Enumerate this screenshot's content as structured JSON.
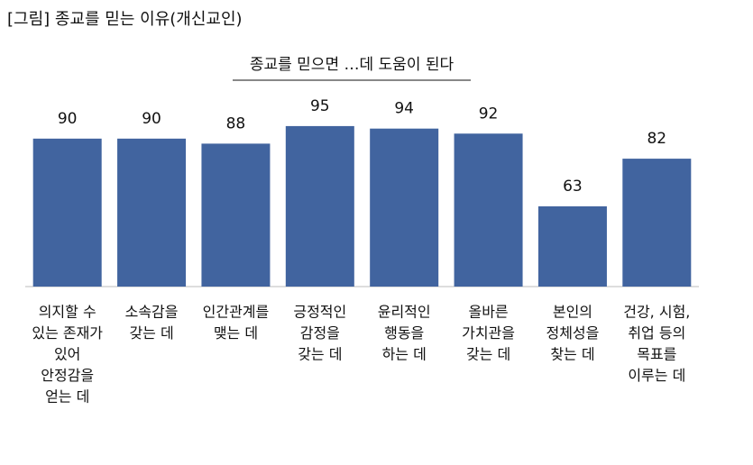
{
  "chart_data": {
    "type": "bar",
    "title": "[그림] 종교를 믿는 이유(개신교인)",
    "subtitle": "종교를 믿으면 …데 도움이 된다",
    "categories": [
      [
        "의지할 수",
        "있는 존재가",
        "있어",
        "안정감을",
        "얻는 데"
      ],
      [
        "소속감을",
        "갖는 데"
      ],
      [
        "인간관계를",
        "맺는 데"
      ],
      [
        "긍정적인",
        "감정을",
        "갖는 데"
      ],
      [
        "윤리적인",
        "행동을",
        "하는 데"
      ],
      [
        "올바른",
        "가치관을",
        "갖는 데"
      ],
      [
        "본인의",
        "정체성을",
        "찾는 데"
      ],
      [
        "건강, 시험,",
        "취업 등의",
        "목표를",
        "이루는 데"
      ]
    ],
    "values": [
      90,
      90,
      88,
      95,
      94,
      92,
      63,
      82
    ],
    "color": "#41649f",
    "ylim": [
      31,
      100
    ]
  }
}
